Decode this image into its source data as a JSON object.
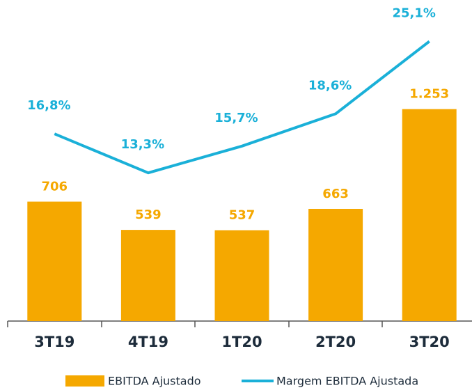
{
  "chart_data": {
    "type": "bar_line",
    "categories": [
      "3T19",
      "4T19",
      "1T20",
      "2T20",
      "3T20"
    ],
    "series": [
      {
        "name": "EBITDA Ajustado",
        "color": "#f5a800",
        "values": [
          706,
          539,
          537,
          663,
          1253
        ],
        "value_labels": [
          "706",
          "539",
          "537",
          "663",
          "1.253"
        ]
      },
      {
        "name": "Margem EBITDA Ajustada",
        "color": "#1ab0d8",
        "axis": "y2",
        "values": [
          16.8,
          13.3,
          15.7,
          18.6,
          25.1
        ],
        "value_labels": [
          "16,8%",
          "13,3%",
          "15,7%",
          "18,6%",
          "25,1%"
        ]
      }
    ],
    "ylim": [
      0,
      1680
    ],
    "y2lim": [
      0,
      25.5
    ]
  }
}
